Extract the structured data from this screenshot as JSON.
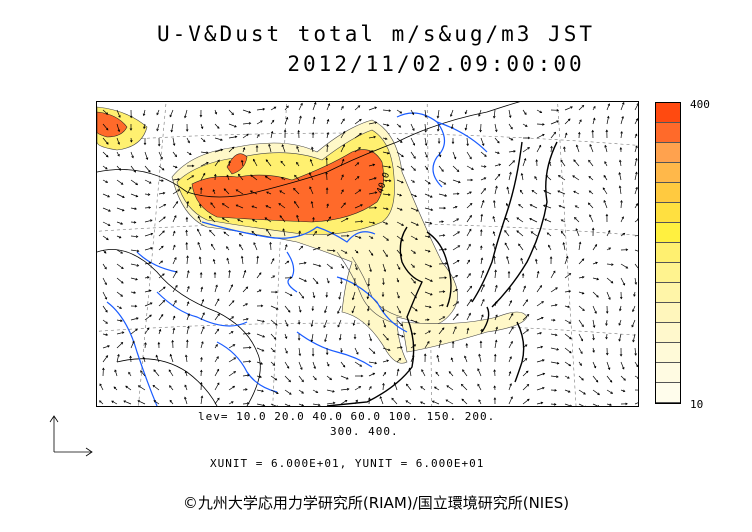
{
  "title": {
    "line1": "U-V&Dust total m/s&ug/m3 JST",
    "line2": "2012/11/02.09:00:00"
  },
  "colorbar": {
    "max_label": "400",
    "min_label": "10",
    "colors": [
      "#ff4a10",
      "#ff6a2a",
      "#ffa24e",
      "#ffb84a",
      "#ffca40",
      "#ffe040",
      "#fff040",
      "#fff070",
      "#fff38f",
      "#fff5a8",
      "#fff6bc",
      "#fff8cc",
      "#fffad8",
      "#fffbe2",
      "#fffdec"
    ]
  },
  "levels": {
    "line1": "lev= 10.0 20.0 40.0 60.0 100. 150. 200.",
    "line2": "300. 400."
  },
  "units": "XUNIT = 6.000E+01, YUNIT = 6.000E+01",
  "contour_label": "40.0",
  "copyright": "©九州大学応用力学研究所(RIAM)/国立環境研究所(NIES)"
}
